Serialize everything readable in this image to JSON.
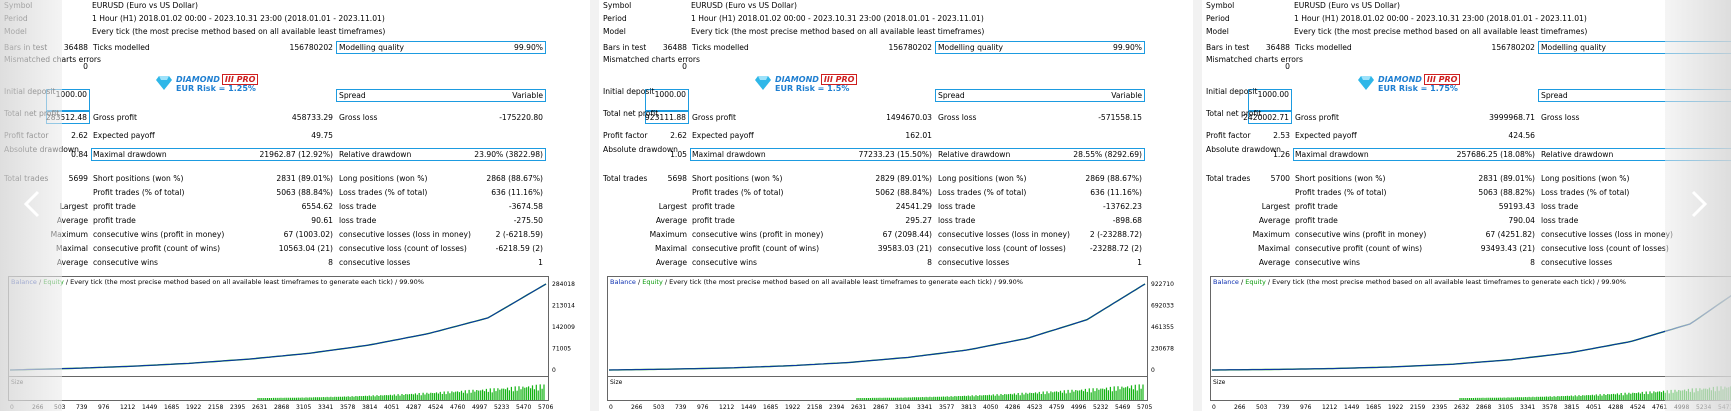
{
  "navigation": {
    "prev_icon": "chevron-left-icon",
    "next_icon": "chevron-right-icon"
  },
  "panels": [
    {
      "symbol_label": "Symbol",
      "symbol": "EURUSD (Euro vs US Dollar)",
      "period_label": "Period",
      "period": "1 Hour (H1) 2018.01.02 00:00 - 2023.10.31 23:00 (2018.01.01 - 2023.11.01)",
      "model_label": "Model",
      "model": "Every tick (the most precise method based on all available least timeframes)",
      "bars_label": "Bars in test",
      "bars": "36488",
      "ticks_label": "Ticks modelled",
      "ticks": "156780202",
      "quality_label": "Modelling quality",
      "quality": "99.90%",
      "mismatch_label": "Mismatched charts errors",
      "mismatch": "0",
      "logo_name": "DIAMOND",
      "logo_pro": "III PRO",
      "risk": "EUR Risk = 1.25%",
      "deposit_label": "Initial deposit",
      "deposit": "1000.00",
      "spread_label": "Spread",
      "spread": "Variable",
      "net_label": "Total net profit",
      "net": "283512.48",
      "gross_profit_label": "Gross profit",
      "gross_profit": "458733.29",
      "gross_loss_label": "Gross loss",
      "gross_loss": "-175220.80",
      "pf_label": "Profit factor",
      "pf": "2.62",
      "payoff_label": "Expected payoff",
      "payoff": "49.75",
      "abs_dd_label": "Absolute drawdown",
      "abs_dd": "0.84",
      "max_dd_label": "Maximal drawdown",
      "max_dd": "21962.87 (12.92%)",
      "rel_dd_label": "Relative drawdown",
      "rel_dd": "23.90% (3822.98)",
      "trades_label": "Total trades",
      "trades": "5699",
      "short_label": "Short positions (won %)",
      "short": "2831 (89.01%)",
      "long_label": "Long positions (won %)",
      "long": "2868 (88.67%)",
      "pt_label": "Profit trades (% of total)",
      "pt": "5063 (88.84%)",
      "lt_label": "Loss trades (% of total)",
      "lt": "636 (11.16%)",
      "largest": "Largest",
      "avg": "Average",
      "maximum": "Maximum",
      "maximal": "Maximal",
      "average2": "Average",
      "lp_label": "profit trade",
      "lp": "6554.62",
      "ll_label": "loss trade",
      "ll": "-3674.58",
      "ap_label": "profit trade",
      "ap": "90.61",
      "al_label": "loss trade",
      "al": "-275.50",
      "mcw_label": "consecutive wins (profit in money)",
      "mcw": "67 (1003.02)",
      "mcl_label": "consecutive losses (loss in money)",
      "mcl": "2 (-6218.59)",
      "mcp_label": "consecutive profit (count of wins)",
      "mcp": "10563.04 (21)",
      "mclc_label": "consecutive loss (count of losses)",
      "mclc": "-6218.59 (2)",
      "acw_label": "consecutive wins",
      "acw": "8",
      "acl_label": "consecutive losses",
      "acl": "1",
      "chart": {
        "legend_balance": "Balance",
        "legend_slash": " / ",
        "legend_equity": "Equity",
        "legend_rest": " / Every tick (the most precise method based on all available least timeframes to generate each tick) / 99.90%",
        "size_label": "Size",
        "y_ticks": [
          "284018",
          "213014",
          "142009",
          "71005",
          "0"
        ],
        "x_ticks": [
          "0",
          "266",
          "503",
          "739",
          "976",
          "1212",
          "1449",
          "1685",
          "1922",
          "2158",
          "2395",
          "2631",
          "2868",
          "3105",
          "3341",
          "3578",
          "3814",
          "4051",
          "4287",
          "4524",
          "4760",
          "4997",
          "5233",
          "5470",
          "5706"
        ]
      }
    },
    {
      "symbol_label": "Symbol",
      "symbol": "EURUSD (Euro vs US Dollar)",
      "period_label": "Period",
      "period": "1 Hour (H1) 2018.01.02 00:00 - 2023.10.31 23:00 (2018.01.01 - 2023.11.01)",
      "model_label": "Model",
      "model": "Every tick (the most precise method based on all available least timeframes)",
      "bars_label": "Bars in test",
      "bars": "36488",
      "ticks_label": "Ticks modelled",
      "ticks": "156780202",
      "quality_label": "Modelling quality",
      "quality": "99.90%",
      "mismatch_label": "Mismatched charts errors",
      "mismatch": "0",
      "logo_name": "DIAMOND",
      "logo_pro": "III PRO",
      "risk": "EUR Risk = 1.5%",
      "deposit_label": "Initial deposit",
      "deposit": "1000.00",
      "spread_label": "Spread",
      "spread": "Variable",
      "net_label": "Total net profit",
      "net": "923111.88",
      "gross_profit_label": "Gross profit",
      "gross_profit": "1494670.03",
      "gross_loss_label": "Gross loss",
      "gross_loss": "-571558.15",
      "pf_label": "Profit factor",
      "pf": "2.62",
      "payoff_label": "Expected payoff",
      "payoff": "162.01",
      "abs_dd_label": "Absolute drawdown",
      "abs_dd": "1.05",
      "max_dd_label": "Maximal drawdown",
      "max_dd": "77233.23 (15.50%)",
      "rel_dd_label": "Relative drawdown",
      "rel_dd": "28.55% (8292.69)",
      "trades_label": "Total trades",
      "trades": "5698",
      "short_label": "Short positions (won %)",
      "short": "2829 (89.01%)",
      "long_label": "Long positions (won %)",
      "long": "2869 (88.67%)",
      "pt_label": "Profit trades (% of total)",
      "pt": "5062 (88.84%)",
      "lt_label": "Loss trades (% of total)",
      "lt": "636 (11.16%)",
      "largest": "Largest",
      "avg": "Average",
      "maximum": "Maximum",
      "maximal": "Maximal",
      "average2": "Average",
      "lp_label": "profit trade",
      "lp": "24541.29",
      "ll_label": "loss trade",
      "ll": "-13762.23",
      "ap_label": "profit trade",
      "ap": "295.27",
      "al_label": "loss trade",
      "al": "-898.68",
      "mcw_label": "consecutive wins (profit in money)",
      "mcw": "67 (2098.44)",
      "mcl_label": "consecutive losses (loss in money)",
      "mcl": "2 (-23288.72)",
      "mcp_label": "consecutive profit (count of wins)",
      "mcp": "39583.03 (21)",
      "mclc_label": "consecutive loss (count of losses)",
      "mclc": "-23288.72 (2)",
      "acw_label": "consecutive wins",
      "acw": "8",
      "acl_label": "consecutive losses",
      "acl": "1",
      "chart": {
        "legend_balance": "Balance",
        "legend_slash": " / ",
        "legend_equity": "Equity",
        "legend_rest": " / Every tick (the most precise method based on all available least timeframes to generate each tick) / 99.90%",
        "size_label": "Size",
        "y_ticks": [
          "922710",
          "692033",
          "461355",
          "230678",
          "0"
        ],
        "x_ticks": [
          "0",
          "266",
          "503",
          "739",
          "976",
          "1212",
          "1449",
          "1685",
          "1922",
          "2158",
          "2394",
          "2631",
          "2867",
          "3104",
          "3341",
          "3577",
          "3813",
          "4050",
          "4286",
          "4523",
          "4759",
          "4996",
          "5232",
          "5469",
          "5705"
        ]
      }
    },
    {
      "symbol_label": "Symbol",
      "symbol": "EURUSD (Euro vs US Dollar)",
      "period_label": "Period",
      "period": "1 Hour (H1) 2018.01.02 00:00 - 2023.10.31 23:00 (2018.01.01 - 2023.11.01)",
      "model_label": "Model",
      "model": "Every tick (the most precise method based on all available least timeframes)",
      "bars_label": "Bars in test",
      "bars": "36488",
      "ticks_label": "Ticks modelled",
      "ticks": "156780202",
      "quality_label": "Modelling quality",
      "quality": "",
      "mismatch_label": "Mismatched charts errors",
      "mismatch": "0",
      "logo_name": "DIAMOND",
      "logo_pro": "III PRO",
      "risk": "EUR Risk = 1.75%",
      "deposit_label": "Initial deposit",
      "deposit": "1000.00",
      "spread_label": "Spread",
      "spread": "",
      "net_label": "Total net profit",
      "net": "2420002.71",
      "gross_profit_label": "Gross profit",
      "gross_profit": "3999968.71",
      "gross_loss_label": "Gross loss",
      "gross_loss": "",
      "pf_label": "Profit factor",
      "pf": "2.53",
      "payoff_label": "Expected payoff",
      "payoff": "424.56",
      "abs_dd_label": "Absolute drawdown",
      "abs_dd": "1.26",
      "max_dd_label": "Maximal drawdown",
      "max_dd": "257686.25 (18.08%)",
      "rel_dd_label": "Relative drawdown",
      "rel_dd": "",
      "trades_label": "Total trades",
      "trades": "5700",
      "short_label": "Short positions (won %)",
      "short": "2831 (89.01%)",
      "long_label": "Long positions (won %)",
      "long": "",
      "pt_label": "Profit trades (% of total)",
      "pt": "5063 (88.82%)",
      "lt_label": "Loss trades (% of total)",
      "lt": "",
      "largest": "Largest",
      "avg": "Average",
      "maximum": "Maximum",
      "maximal": "Maximal",
      "average2": "Average",
      "lp_label": "profit trade",
      "lp": "59193.43",
      "ll_label": "loss trade",
      "ll": "",
      "ap_label": "profit trade",
      "ap": "790.04",
      "al_label": "loss trade",
      "al": "",
      "mcw_label": "consecutive wins (profit in money)",
      "mcw": "67 (4251.82)",
      "mcl_label": "consecutive losses (loss in money)",
      "mcl": "",
      "mcp_label": "consecutive profit (count of wins)",
      "mcp": "93493.43 (21)",
      "mclc_label": "consecutive loss (count of losses)",
      "mclc": "",
      "acw_label": "consecutive wins",
      "acw": "8",
      "acl_label": "consecutive losses",
      "acl": "",
      "chart": {
        "legend_balance": "Balance",
        "legend_slash": " / ",
        "legend_equity": "Equity",
        "legend_rest": " / Every tick (the most precise method based on all available least timeframes to generate each tick) / 99.90%",
        "size_label": "Size",
        "y_ticks": [
          "",
          "",
          "",
          "",
          ""
        ],
        "x_ticks": [
          "0",
          "266",
          "503",
          "739",
          "976",
          "1212",
          "1449",
          "1685",
          "1922",
          "2159",
          "2395",
          "2632",
          "2868",
          "3105",
          "3341",
          "3578",
          "3815",
          "4051",
          "4288",
          "4524",
          "4761",
          "4998",
          "5234",
          "5471",
          ""
        ]
      }
    }
  ],
  "chart_data": [
    {
      "type": "line",
      "series": [
        {
          "name": "Balance",
          "values": [
            0,
            5000,
            12000,
            22000,
            36000,
            55000,
            82000,
            120000,
            172000,
            284018
          ]
        }
      ],
      "x": [
        0,
        636,
        1272,
        1908,
        2544,
        3180,
        3816,
        4452,
        5088,
        5706
      ],
      "ylim": [
        0,
        284018
      ]
    },
    {
      "type": "line",
      "series": [
        {
          "name": "Balance",
          "values": [
            0,
            9000,
            22000,
            45000,
            80000,
            135000,
            215000,
            340000,
            540000,
            922710
          ]
        }
      ],
      "x": [
        0,
        636,
        1272,
        1908,
        2544,
        3180,
        3816,
        4452,
        5088,
        5705
      ],
      "ylim": [
        0,
        922710
      ]
    },
    {
      "type": "line",
      "series": [
        {
          "name": "Balance",
          "values": [
            0,
            15000,
            40000,
            85000,
            160000,
            290000,
            490000,
            800000,
            1300000,
            2420002
          ]
        }
      ],
      "x": [
        0,
        636,
        1272,
        1908,
        2544,
        3180,
        3816,
        4452,
        5088,
        5700
      ]
    }
  ]
}
